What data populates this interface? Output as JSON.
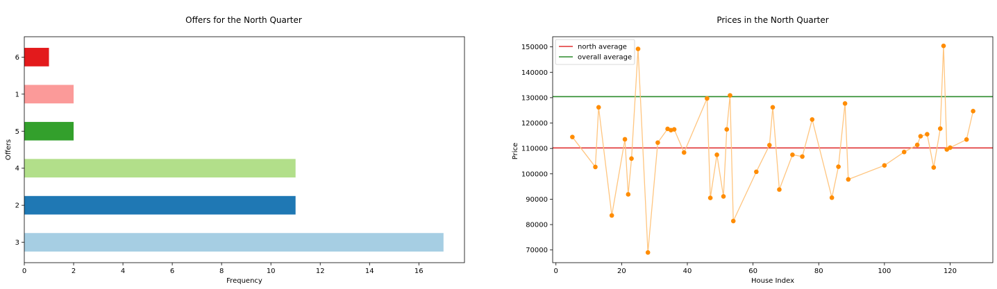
{
  "chart_data": [
    {
      "type": "bar",
      "orientation": "horizontal",
      "title": "Offers for the North Quarter",
      "xlabel": "Frequency",
      "ylabel": "Offers",
      "categories": [
        "3",
        "2",
        "4",
        "5",
        "1",
        "6"
      ],
      "values": [
        17,
        11,
        11,
        2,
        2,
        1
      ],
      "colors": [
        "#a6cee3",
        "#1f78b4",
        "#b2df8a",
        "#33a02c",
        "#fb9a99",
        "#e31a1c"
      ],
      "xlim": [
        0,
        17.85
      ],
      "xticks": [
        0,
        2,
        4,
        6,
        8,
        10,
        12,
        14,
        16
      ],
      "grid": false
    },
    {
      "type": "scatter",
      "connected": true,
      "title": "Prices in the North Quarter",
      "xlabel": "House Index",
      "ylabel": "Price",
      "xlim": [
        -1,
        133
      ],
      "ylim": [
        65000,
        154000
      ],
      "xticks": [
        0,
        20,
        40,
        60,
        80,
        100,
        120
      ],
      "yticks": [
        70000,
        80000,
        90000,
        100000,
        110000,
        120000,
        130000,
        140000,
        150000
      ],
      "point_color": "#ff8c00",
      "line_color": "#ffc57f",
      "x": [
        5,
        12,
        13,
        17,
        21,
        22,
        23,
        25,
        28,
        31,
        34,
        35,
        36,
        39,
        46,
        47,
        49,
        51,
        52,
        53,
        54,
        61,
        65,
        66,
        68,
        72,
        75,
        78,
        84,
        86,
        88,
        89,
        100,
        106,
        110,
        111,
        113,
        115,
        117,
        118,
        119,
        120,
        125,
        127
      ],
      "y": [
        114500,
        102700,
        126200,
        83600,
        113600,
        91900,
        106000,
        149200,
        69000,
        112300,
        117700,
        117200,
        117500,
        108400,
        129700,
        90500,
        107500,
        91100,
        117500,
        130900,
        81400,
        100800,
        111300,
        126200,
        93800,
        107500,
        106800,
        121400,
        90600,
        102800,
        127700,
        97800,
        103300,
        108600,
        111400,
        114800,
        115600,
        102500,
        117800,
        150400,
        109600,
        110300,
        113500,
        124700
      ],
      "hlines": [
        {
          "name": "north average",
          "value": 110200,
          "color": "#e03030"
        },
        {
          "name": "overall average",
          "value": 130400,
          "color": "#2a8a2a"
        }
      ],
      "legend": "upper-left",
      "grid": false
    }
  ]
}
